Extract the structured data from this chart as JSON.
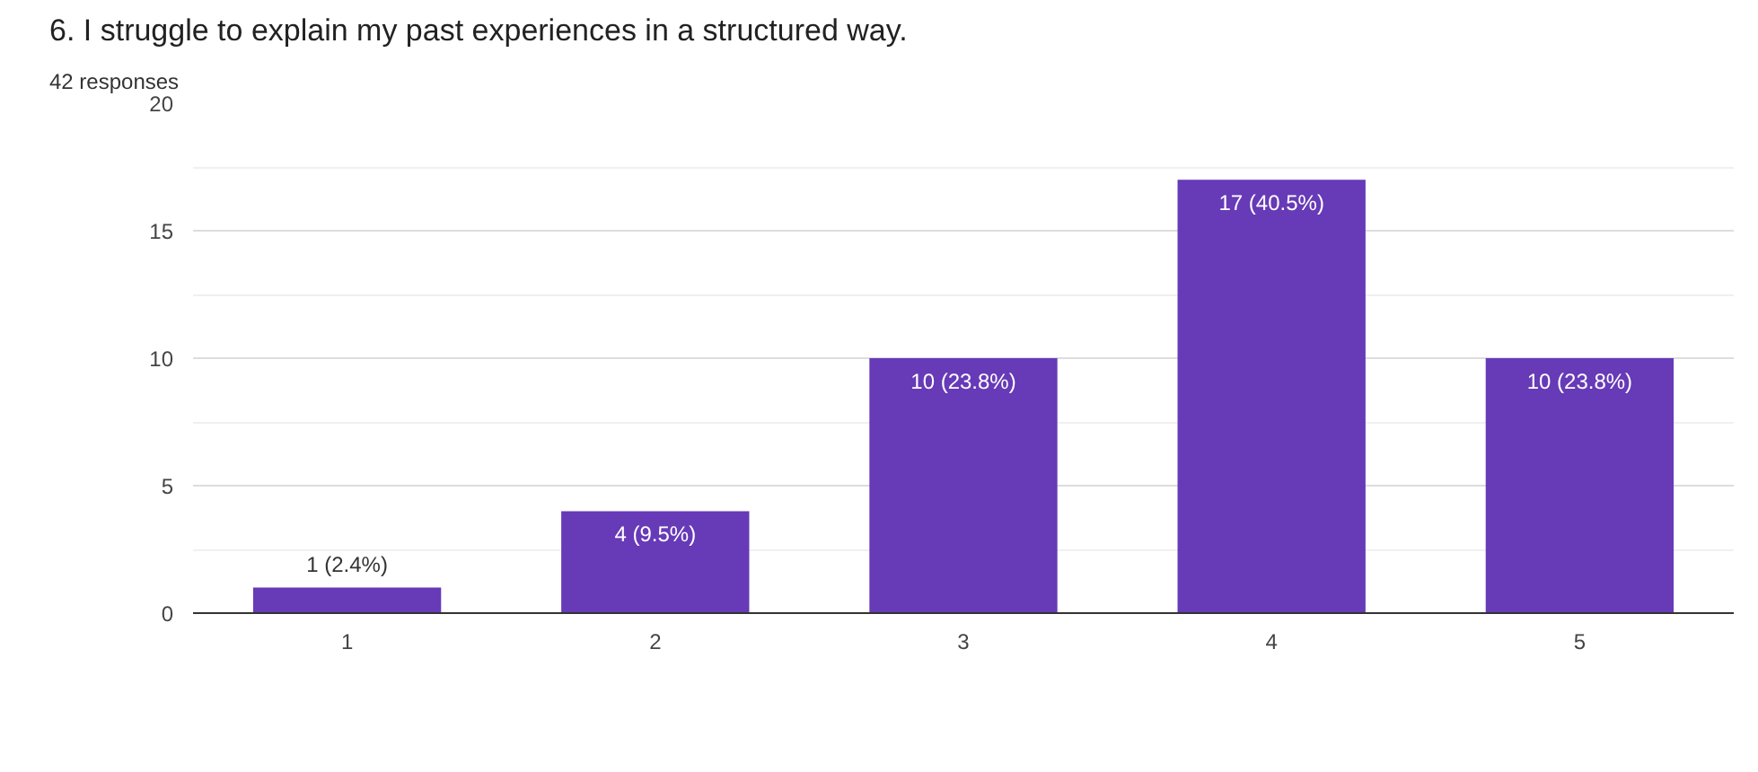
{
  "chart_data": {
    "type": "bar",
    "title": "6. I struggle to explain my past experiences in a structured way.",
    "subtitle": "42 responses",
    "categories": [
      "1",
      "2",
      "3",
      "4",
      "5"
    ],
    "values": [
      1,
      4,
      10,
      17,
      10
    ],
    "value_labels": [
      "1 (2.4%)",
      "4 (9.5%)",
      "10 (23.8%)",
      "17 (40.5%)",
      "10 (23.8%)"
    ],
    "color": "#673ab7",
    "ylim": [
      0,
      20
    ],
    "yticks": [
      0,
      5,
      10,
      15,
      20
    ],
    "grid": "y"
  }
}
